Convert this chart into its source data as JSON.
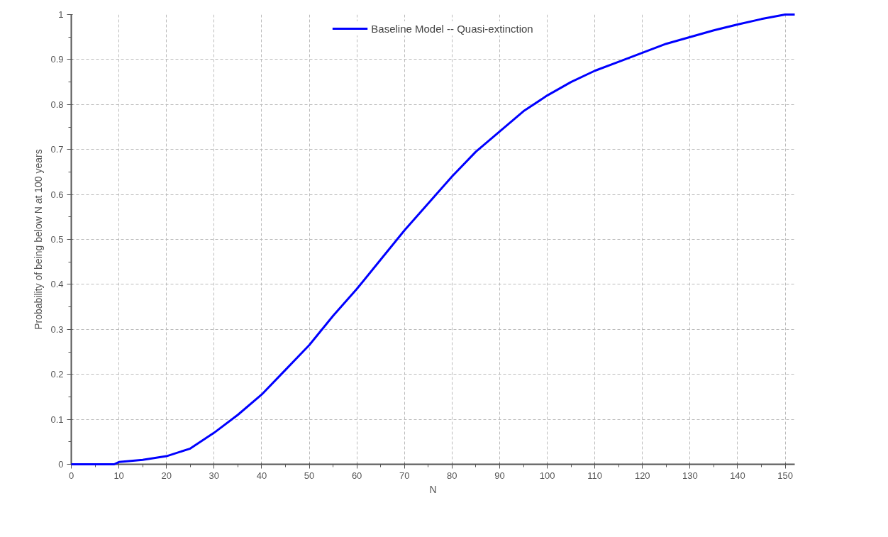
{
  "chart_data": {
    "type": "line",
    "xlabel": "N",
    "ylabel": "Probability of being below N at 100 years",
    "xlim": [
      0,
      152
    ],
    "xticks": [
      0,
      10,
      20,
      30,
      40,
      50,
      60,
      70,
      80,
      90,
      100,
      110,
      120,
      130,
      140,
      150
    ],
    "ylim": [
      0,
      1
    ],
    "yticks": [
      0,
      0.1,
      0.2,
      0.3,
      0.4,
      0.5,
      0.6,
      0.7,
      0.8,
      0.9,
      1
    ],
    "grid": true,
    "legend": "top",
    "line_style": "solid",
    "series": [
      {
        "name": "Baseline Model -- Quasi-extinction",
        "color": "#0000ff",
        "x": [
          0,
          5,
          9,
          10,
          15,
          20,
          25,
          30,
          35,
          40,
          45,
          50,
          55,
          60,
          65,
          70,
          75,
          80,
          85,
          90,
          95,
          100,
          105,
          110,
          115,
          120,
          125,
          130,
          135,
          140,
          145,
          150,
          152
        ],
        "values": [
          0,
          0,
          0,
          0.005,
          0.01,
          0.018,
          0.035,
          0.07,
          0.11,
          0.155,
          0.21,
          0.265,
          0.33,
          0.39,
          0.455,
          0.52,
          0.58,
          0.64,
          0.695,
          0.74,
          0.785,
          0.82,
          0.85,
          0.875,
          0.895,
          0.915,
          0.935,
          0.95,
          0.965,
          0.978,
          0.99,
          1.0,
          1.0
        ]
      }
    ]
  }
}
